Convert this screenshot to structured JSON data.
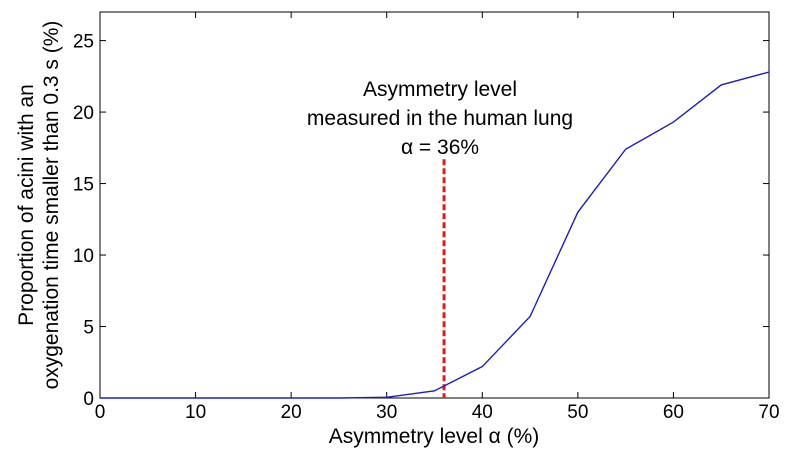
{
  "chart_data": {
    "type": "line",
    "title": "",
    "xlabel": "Asymmetry level α (%)",
    "ylabel_lines": [
      "Proportion of acini with an",
      "oxygenation time smaller than 0.3 s (%)"
    ],
    "xlim": [
      0,
      70
    ],
    "ylim": [
      0,
      27
    ],
    "xticks": [
      0,
      10,
      20,
      30,
      40,
      50,
      60,
      70
    ],
    "yticks": [
      0,
      5,
      10,
      15,
      20,
      25
    ],
    "grid": false,
    "legend": "none",
    "series": [
      {
        "color": "#1f1fb4",
        "x": [
          0,
          5,
          10,
          15,
          20,
          25,
          30,
          35,
          40,
          45,
          50,
          55,
          60,
          65,
          70
        ],
        "y": [
          0,
          0,
          0,
          0,
          0,
          0,
          0.05,
          0.5,
          2.2,
          5.7,
          13.0,
          17.4,
          19.3,
          21.9,
          22.8
        ]
      }
    ],
    "annotation": {
      "lines": [
        "Asymmetry level",
        "measured in the human lung",
        "α = 36%"
      ],
      "x": 36,
      "y_top": 16.7,
      "line_color": "#dd1c1c",
      "line_style": "dashed"
    }
  }
}
